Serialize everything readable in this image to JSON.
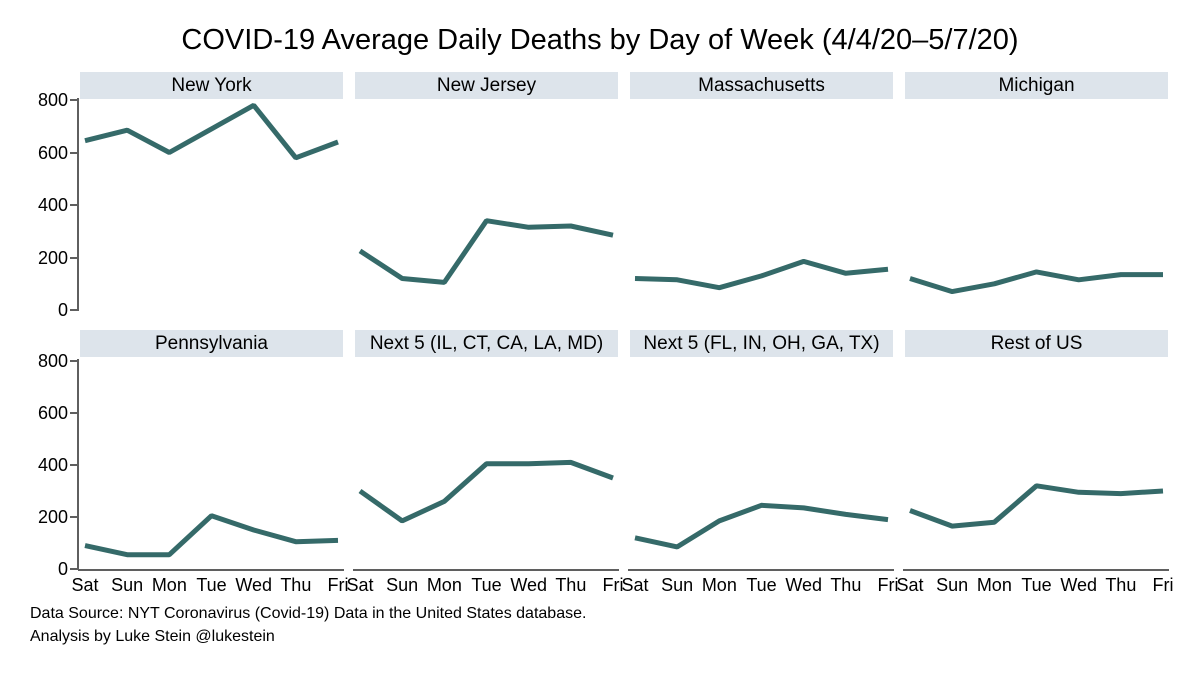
{
  "chart_data": {
    "type": "line",
    "title": "COVID-19 Average Daily Deaths by Day of Week (4/4/20–5/7/20)",
    "layout": "small-multiples grid, 2 rows x 4 columns, shared y axis per row (labels on leftmost panel only), x axis labels on bottom row only, no gridlines, no legend",
    "categories": [
      "Sat",
      "Sun",
      "Mon",
      "Tue",
      "Wed",
      "Thu",
      "Fri"
    ],
    "xlabel": "",
    "ylabel": "",
    "ylim": [
      0,
      800
    ],
    "yticks": [
      0,
      200,
      400,
      600,
      800
    ],
    "grid": false,
    "series": [
      {
        "name": "New York",
        "values": [
          645,
          685,
          600,
          690,
          780,
          580,
          640
        ]
      },
      {
        "name": "New Jersey",
        "values": [
          225,
          120,
          105,
          340,
          315,
          320,
          285
        ]
      },
      {
        "name": "Massachusetts",
        "values": [
          120,
          115,
          85,
          130,
          185,
          140,
          155
        ]
      },
      {
        "name": "Michigan",
        "values": [
          120,
          70,
          100,
          145,
          115,
          135,
          135
        ]
      },
      {
        "name": "Pennsylvania",
        "values": [
          90,
          55,
          55,
          205,
          150,
          105,
          110
        ]
      },
      {
        "name": "Next 5 (IL, CT, CA, LA, MD)",
        "values": [
          300,
          185,
          260,
          405,
          405,
          410,
          350
        ]
      },
      {
        "name": "Next 5 (FL, IN, OH, GA, TX)",
        "values": [
          120,
          85,
          185,
          245,
          235,
          210,
          190
        ]
      },
      {
        "name": "Rest of US",
        "values": [
          225,
          165,
          180,
          320,
          295,
          290,
          300
        ]
      }
    ],
    "caption_lines": [
      "Data Source: NYT Coronavirus (Covid-19) Data in the United States database.",
      "Analysis by Luke Stein @lukestein"
    ],
    "colors": {
      "line": "#356a69",
      "panel_header_bg": "#dde4eb",
      "axis": "#5f5f5f",
      "text": "#000000",
      "background": "#ffffff"
    }
  }
}
